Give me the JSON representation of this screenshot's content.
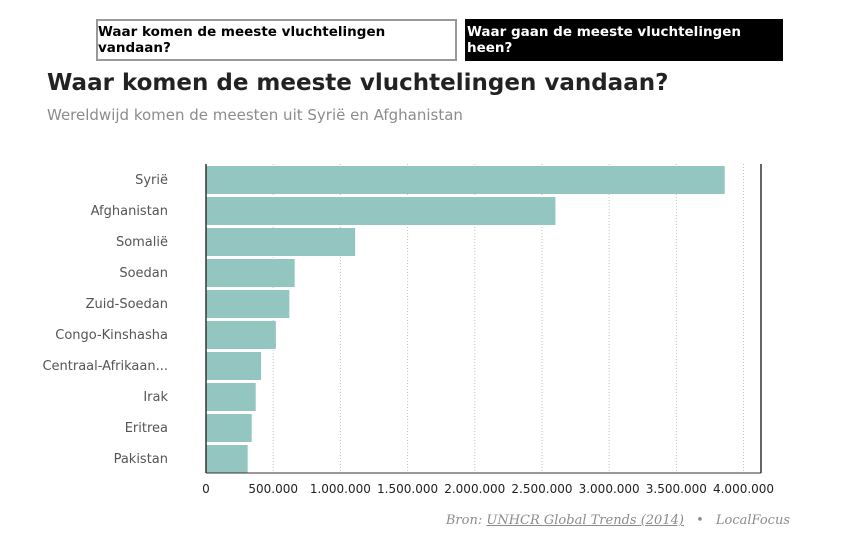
{
  "tabs": {
    "origin_label": "Waar komen de meeste vluchtelingen vandaan?",
    "destination_label": "Waar gaan de meeste vluchtelingen heen?"
  },
  "header": {
    "title": "Waar komen de meeste vluchtelingen vandaan?",
    "subtitle": "Wereldwijd komen de meesten uit Syrië en Afghanistan"
  },
  "footer": {
    "source_prefix": "Bron:",
    "source_link": "UNHCR Global Trends (2014)",
    "separator": "•",
    "credit": "LocalFocus"
  },
  "colors": {
    "bar": "#93c6c1",
    "grid": "#bfbfbf",
    "axis": "#333333"
  },
  "chart_data": {
    "type": "bar",
    "orientation": "horizontal",
    "categories": [
      "Syrië",
      "Afghanistan",
      "Somalië",
      "Soedan",
      "Zuid-Soedan",
      "Congo-Kinshasha",
      "Centraal-Afrikaan...",
      "Irak",
      "Eritrea",
      "Pakistan"
    ],
    "values": [
      3860000,
      2600000,
      1110000,
      660000,
      620000,
      520000,
      410000,
      370000,
      340000,
      310000
    ],
    "xlim": [
      0,
      4130000
    ],
    "xticks": [
      0,
      500000,
      1000000,
      1500000,
      2000000,
      2500000,
      3000000,
      3500000,
      4000000
    ],
    "xtick_labels": [
      "0",
      "500.000",
      "1.000.000",
      "1.500.000",
      "2.000.000",
      "2.500.000",
      "3.000.000",
      "3.500.000",
      "4.000.000"
    ],
    "grid": true
  }
}
